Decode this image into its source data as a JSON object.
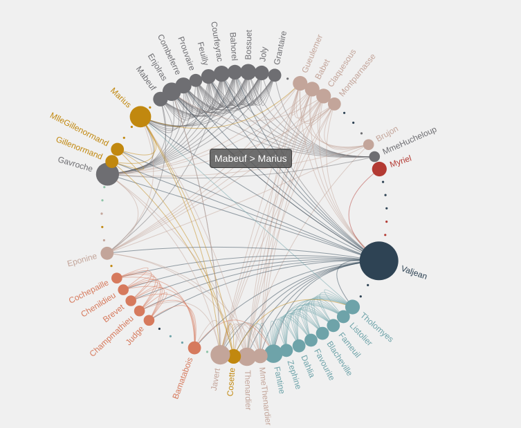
{
  "tooltip": {
    "text": "Mabeuf > Marius"
  },
  "colors": {
    "background": "#f0f0f0",
    "categories": [
      "#c1880f",
      "#6e6e72",
      "#c3a59a",
      "#b33a33",
      "#2e4354",
      "#d67a5d",
      "#6ea3a9",
      "#8fc3a8"
    ]
  },
  "chart_data": {
    "type": "graph",
    "layout": "circular",
    "nodes": [
      {
        "name": "Mabeuf",
        "category": 1,
        "size": 3,
        "label": true
      },
      {
        "name": "Enjolras",
        "category": 1,
        "size": 6,
        "label": true
      },
      {
        "name": "Combeferre",
        "category": 1,
        "size": 4,
        "label": true
      },
      {
        "name": "Prouvaire",
        "category": 1,
        "size": 2,
        "label": true
      },
      {
        "name": "Feuilly",
        "category": 1,
        "size": 3,
        "label": true
      },
      {
        "name": "Courfeyrac",
        "category": 1,
        "size": 4,
        "label": true
      },
      {
        "name": "Bahorel",
        "category": 1,
        "size": 3,
        "label": true
      },
      {
        "name": "Bossuet",
        "category": 1,
        "size": 4,
        "label": true
      },
      {
        "name": "Joly",
        "category": 1,
        "size": 3,
        "label": true
      },
      {
        "name": "Grantaire",
        "category": 1,
        "size": 2,
        "label": true
      },
      {
        "name": "",
        "category": 1,
        "size": 0,
        "label": false
      },
      {
        "name": "Gueulemer",
        "category": 2,
        "size": 3,
        "label": true
      },
      {
        "name": "Babet",
        "category": 2,
        "size": 3,
        "label": true
      },
      {
        "name": "Claquesous",
        "category": 2,
        "size": 3,
        "label": true
      },
      {
        "name": "Montparnasse",
        "category": 2,
        "size": 2,
        "label": true
      },
      {
        "name": "",
        "category": 4,
        "size": 0,
        "label": false
      },
      {
        "name": "",
        "category": 4,
        "size": 0,
        "label": false
      },
      {
        "name": "",
        "category": 1,
        "size": 0,
        "label": false
      },
      {
        "name": "Brujon",
        "category": 2,
        "size": 1,
        "label": true
      },
      {
        "name": "MmeHucheloup",
        "category": 1,
        "size": 1,
        "label": true
      },
      {
        "name": "Myriel",
        "category": 3,
        "size": 3,
        "label": true
      },
      {
        "name": "",
        "category": 4,
        "size": 0,
        "label": false
      },
      {
        "name": "",
        "category": 4,
        "size": 0,
        "label": false
      },
      {
        "name": "",
        "category": 4,
        "size": 0,
        "label": false
      },
      {
        "name": "",
        "category": 3,
        "size": 0,
        "label": false
      },
      {
        "name": "",
        "category": 3,
        "size": 0,
        "label": false
      },
      {
        "name": "",
        "category": 3,
        "size": 0,
        "label": false
      },
      {
        "name": "Valjean",
        "category": 4,
        "size": 40,
        "label": true
      },
      {
        "name": "",
        "category": 4,
        "size": 0,
        "label": false
      },
      {
        "name": "",
        "category": 4,
        "size": 0,
        "label": false
      },
      {
        "name": "",
        "category": 4,
        "size": 0,
        "label": false
      },
      {
        "name": "Tholomyes",
        "category": 6,
        "size": 3,
        "label": true
      },
      {
        "name": "Listolier",
        "category": 6,
        "size": 2,
        "label": true
      },
      {
        "name": "Fameuil",
        "category": 6,
        "size": 2,
        "label": true
      },
      {
        "name": "Blacheville",
        "category": 6,
        "size": 2,
        "label": true
      },
      {
        "name": "Favourite",
        "category": 6,
        "size": 2,
        "label": true
      },
      {
        "name": "Dahlia",
        "category": 6,
        "size": 2,
        "label": true
      },
      {
        "name": "Zephine",
        "category": 6,
        "size": 2,
        "label": true
      },
      {
        "name": "Fantine",
        "category": 6,
        "size": 6,
        "label": true
      },
      {
        "name": "MmeThenardier",
        "category": 2,
        "size": 3,
        "label": true
      },
      {
        "name": "Thenardier",
        "category": 2,
        "size": 6,
        "label": true
      },
      {
        "name": "Cosette",
        "category": 0,
        "size": 3,
        "label": true
      },
      {
        "name": "Javert",
        "category": 2,
        "size": 7,
        "label": true
      },
      {
        "name": "",
        "category": 7,
        "size": 0,
        "label": false
      },
      {
        "name": "Bamatabois",
        "category": 5,
        "size": 2,
        "label": true
      },
      {
        "name": "",
        "category": 6,
        "size": 0,
        "label": false
      },
      {
        "name": "",
        "category": 6,
        "size": 0,
        "label": false
      },
      {
        "name": "",
        "category": 4,
        "size": 0,
        "label": false
      },
      {
        "name": "Judge",
        "category": 5,
        "size": 1,
        "label": true
      },
      {
        "name": "Champmathieu",
        "category": 5,
        "size": 1,
        "label": true
      },
      {
        "name": "Brevet",
        "category": 5,
        "size": 1,
        "label": true
      },
      {
        "name": "Chenildieu",
        "category": 5,
        "size": 1,
        "label": true
      },
      {
        "name": "Cochepaille",
        "category": 5,
        "size": 1,
        "label": true
      },
      {
        "name": "",
        "category": 0,
        "size": 0,
        "label": false
      },
      {
        "name": "Eponine",
        "category": 2,
        "size": 2,
        "label": true
      },
      {
        "name": "",
        "category": 2,
        "size": 0,
        "label": false
      },
      {
        "name": "",
        "category": 0,
        "size": 0,
        "label": false
      },
      {
        "name": "",
        "category": 2,
        "size": 0,
        "label": false
      },
      {
        "name": "",
        "category": 7,
        "size": 0,
        "label": false
      },
      {
        "name": "",
        "category": 7,
        "size": 0,
        "label": false
      },
      {
        "name": "Gavroche",
        "category": 1,
        "size": 11,
        "label": true
      },
      {
        "name": "Gillenormand",
        "category": 0,
        "size": 2,
        "label": true
      },
      {
        "name": "MlleGillenormand",
        "category": 0,
        "size": 2,
        "label": true
      },
      {
        "name": "",
        "category": 0,
        "size": 0,
        "label": false
      },
      {
        "name": "",
        "category": 0,
        "size": 0,
        "label": false
      },
      {
        "name": "Marius",
        "category": 0,
        "size": 9,
        "label": true
      },
      {
        "name": "",
        "category": 0,
        "size": 0,
        "label": false
      }
    ],
    "links": [
      [
        "Mabeuf",
        "Marius"
      ],
      [
        "Mabeuf",
        "Gavroche"
      ],
      [
        "Mabeuf",
        "Eponine"
      ],
      [
        "Mabeuf",
        "Enjolras"
      ],
      [
        "Mabeuf",
        "Combeferre"
      ],
      [
        "Mabeuf",
        "Courfeyrac"
      ],
      [
        "Mabeuf",
        "Feuilly"
      ],
      [
        "Mabeuf",
        "Bossuet"
      ],
      [
        "Mabeuf",
        "Joly"
      ],
      [
        "Mabeuf",
        "Bahorel"
      ],
      [
        "Mabeuf",
        "Prouvaire"
      ],
      [
        "Enjolras",
        "Marius"
      ],
      [
        "Enjolras",
        "Gavroche"
      ],
      [
        "Enjolras",
        "Javert"
      ],
      [
        "Enjolras",
        "Valjean"
      ],
      [
        "Enjolras",
        "Combeferre"
      ],
      [
        "Enjolras",
        "Prouvaire"
      ],
      [
        "Enjolras",
        "Feuilly"
      ],
      [
        "Enjolras",
        "Courfeyrac"
      ],
      [
        "Enjolras",
        "Bahorel"
      ],
      [
        "Enjolras",
        "Bossuet"
      ],
      [
        "Enjolras",
        "Joly"
      ],
      [
        "Enjolras",
        "Grantaire"
      ],
      [
        "Enjolras",
        "MmeHucheloup"
      ],
      [
        "Combeferre",
        "Marius"
      ],
      [
        "Combeferre",
        "Gavroche"
      ],
      [
        "Combeferre",
        "Prouvaire"
      ],
      [
        "Combeferre",
        "Feuilly"
      ],
      [
        "Combeferre",
        "Courfeyrac"
      ],
      [
        "Combeferre",
        "Bahorel"
      ],
      [
        "Combeferre",
        "Bossuet"
      ],
      [
        "Combeferre",
        "Joly"
      ],
      [
        "Combeferre",
        "Grantaire"
      ],
      [
        "Prouvaire",
        "Gavroche"
      ],
      [
        "Prouvaire",
        "Feuilly"
      ],
      [
        "Prouvaire",
        "Courfeyrac"
      ],
      [
        "Prouvaire",
        "Bahorel"
      ],
      [
        "Prouvaire",
        "Bossuet"
      ],
      [
        "Prouvaire",
        "Joly"
      ],
      [
        "Prouvaire",
        "Grantaire"
      ],
      [
        "Feuilly",
        "Marius"
      ],
      [
        "Feuilly",
        "Gavroche"
      ],
      [
        "Feuilly",
        "Courfeyrac"
      ],
      [
        "Feuilly",
        "Bahorel"
      ],
      [
        "Feuilly",
        "Bossuet"
      ],
      [
        "Feuilly",
        "Joly"
      ],
      [
        "Feuilly",
        "Grantaire"
      ],
      [
        "Feuilly",
        "MmeHucheloup"
      ],
      [
        "Courfeyrac",
        "Marius"
      ],
      [
        "Courfeyrac",
        "Gavroche"
      ],
      [
        "Courfeyrac",
        "Eponine"
      ],
      [
        "Courfeyrac",
        "Bahorel"
      ],
      [
        "Courfeyrac",
        "Bossuet"
      ],
      [
        "Courfeyrac",
        "Joly"
      ],
      [
        "Courfeyrac",
        "Grantaire"
      ],
      [
        "Courfeyrac",
        "MmeHucheloup"
      ],
      [
        "Bahorel",
        "Marius"
      ],
      [
        "Bahorel",
        "Gavroche"
      ],
      [
        "Bahorel",
        "Bossuet"
      ],
      [
        "Bahorel",
        "Joly"
      ],
      [
        "Bahorel",
        "Grantaire"
      ],
      [
        "Bahorel",
        "MmeHucheloup"
      ],
      [
        "Bossuet",
        "Marius"
      ],
      [
        "Bossuet",
        "Valjean"
      ],
      [
        "Bossuet",
        "Gavroche"
      ],
      [
        "Bossuet",
        "Joly"
      ],
      [
        "Bossuet",
        "Grantaire"
      ],
      [
        "Bossuet",
        "MmeHucheloup"
      ],
      [
        "Joly",
        "Marius"
      ],
      [
        "Joly",
        "Gavroche"
      ],
      [
        "Joly",
        "Grantaire"
      ],
      [
        "Joly",
        "MmeHucheloup"
      ],
      [
        "Grantaire",
        "Gavroche"
      ],
      [
        "Grantaire",
        "MmeHucheloup"
      ],
      [
        "Gueulemer",
        "Babet"
      ],
      [
        "Gueulemer",
        "Claquesous"
      ],
      [
        "Gueulemer",
        "Montparnasse"
      ],
      [
        "Gueulemer",
        "Brujon"
      ],
      [
        "Gueulemer",
        "Thenardier"
      ],
      [
        "Gueulemer",
        "MmeThenardier"
      ],
      [
        "Gueulemer",
        "Javert"
      ],
      [
        "Gueulemer",
        "Valjean"
      ],
      [
        "Gueulemer",
        "Eponine"
      ],
      [
        "Gueulemer",
        "Gavroche"
      ],
      [
        "Babet",
        "Claquesous"
      ],
      [
        "Babet",
        "Montparnasse"
      ],
      [
        "Babet",
        "Brujon"
      ],
      [
        "Babet",
        "Thenardier"
      ],
      [
        "Babet",
        "MmeThenardier"
      ],
      [
        "Babet",
        "Javert"
      ],
      [
        "Babet",
        "Valjean"
      ],
      [
        "Babet",
        "Eponine"
      ],
      [
        "Babet",
        "Gavroche"
      ],
      [
        "Claquesous",
        "Montparnasse"
      ],
      [
        "Claquesous",
        "Brujon"
      ],
      [
        "Claquesous",
        "Thenardier"
      ],
      [
        "Claquesous",
        "MmeThenardier"
      ],
      [
        "Claquesous",
        "Javert"
      ],
      [
        "Claquesous",
        "Valjean"
      ],
      [
        "Claquesous",
        "Eponine"
      ],
      [
        "Claquesous",
        "Enjolras"
      ],
      [
        "Montparnasse",
        "Brujon"
      ],
      [
        "Montparnasse",
        "Thenardier"
      ],
      [
        "Montparnasse",
        "Javert"
      ],
      [
        "Montparnasse",
        "Valjean"
      ],
      [
        "Montparnasse",
        "Eponine"
      ],
      [
        "Montparnasse",
        "Gavroche"
      ],
      [
        "Brujon",
        "Thenardier"
      ],
      [
        "Brujon",
        "Gavroche"
      ],
      [
        "Brujon",
        "Eponine"
      ],
      [
        "MmeHucheloup",
        "Gavroche"
      ],
      [
        "MmeHucheloup",
        "Combeferre"
      ],
      [
        "MmeHucheloup",
        "Prouvaire"
      ],
      [
        "Myriel",
        "Valjean"
      ],
      [
        "Valjean",
        "Tholomyes"
      ],
      [
        "Valjean",
        "Fantine"
      ],
      [
        "Valjean",
        "Cosette"
      ],
      [
        "Valjean",
        "Javert"
      ],
      [
        "Valjean",
        "Thenardier"
      ],
      [
        "Valjean",
        "MmeThenardier"
      ],
      [
        "Valjean",
        "Marius"
      ],
      [
        "Valjean",
        "Gavroche"
      ],
      [
        "Valjean",
        "Bamatabois"
      ],
      [
        "Valjean",
        "Judge"
      ],
      [
        "Valjean",
        "Champmathieu"
      ],
      [
        "Valjean",
        "Brevet"
      ],
      [
        "Valjean",
        "Chenildieu"
      ],
      [
        "Valjean",
        "Cochepaille"
      ],
      [
        "Valjean",
        "Gillenormand"
      ],
      [
        "Valjean",
        "MlleGillenormand"
      ],
      [
        "Valjean",
        "Eponine"
      ],
      [
        "Valjean",
        "Enjolras"
      ],
      [
        "Valjean",
        "Combeferre"
      ],
      [
        "Valjean",
        "Courfeyrac"
      ],
      [
        "Valjean",
        "Feuilly"
      ],
      [
        "Valjean",
        "Bahorel"
      ],
      [
        "Tholomyes",
        "Listolier"
      ],
      [
        "Tholomyes",
        "Fameuil"
      ],
      [
        "Tholomyes",
        "Blacheville"
      ],
      [
        "Tholomyes",
        "Favourite"
      ],
      [
        "Tholomyes",
        "Dahlia"
      ],
      [
        "Tholomyes",
        "Zephine"
      ],
      [
        "Tholomyes",
        "Fantine"
      ],
      [
        "Tholomyes",
        "Marius"
      ],
      [
        "Listolier",
        "Fameuil"
      ],
      [
        "Listolier",
        "Blacheville"
      ],
      [
        "Listolier",
        "Favourite"
      ],
      [
        "Listolier",
        "Dahlia"
      ],
      [
        "Listolier",
        "Zephine"
      ],
      [
        "Listolier",
        "Fantine"
      ],
      [
        "Fameuil",
        "Blacheville"
      ],
      [
        "Fameuil",
        "Favourite"
      ],
      [
        "Fameuil",
        "Dahlia"
      ],
      [
        "Fameuil",
        "Zephine"
      ],
      [
        "Fameuil",
        "Fantine"
      ],
      [
        "Blacheville",
        "Favourite"
      ],
      [
        "Blacheville",
        "Dahlia"
      ],
      [
        "Blacheville",
        "Zephine"
      ],
      [
        "Blacheville",
        "Fantine"
      ],
      [
        "Favourite",
        "Dahlia"
      ],
      [
        "Favourite",
        "Zephine"
      ],
      [
        "Favourite",
        "Fantine"
      ],
      [
        "Dahlia",
        "Zephine"
      ],
      [
        "Dahlia",
        "Fantine"
      ],
      [
        "Zephine",
        "Fantine"
      ],
      [
        "Fantine",
        "Thenardier"
      ],
      [
        "Fantine",
        "MmeThenardier"
      ],
      [
        "Fantine",
        "Javert"
      ],
      [
        "MmeThenardier",
        "Thenardier"
      ],
      [
        "MmeThenardier",
        "Cosette"
      ],
      [
        "MmeThenardier",
        "Javert"
      ],
      [
        "MmeThenardier",
        "Eponine"
      ],
      [
        "Thenardier",
        "Cosette"
      ],
      [
        "Thenardier",
        "Javert"
      ],
      [
        "Thenardier",
        "Marius"
      ],
      [
        "Thenardier",
        "Eponine"
      ],
      [
        "Thenardier",
        "Gavroche"
      ],
      [
        "Cosette",
        "Javert"
      ],
      [
        "Cosette",
        "Marius"
      ],
      [
        "Cosette",
        "Gillenormand"
      ],
      [
        "Cosette",
        "MlleGillenormand"
      ],
      [
        "Cosette",
        "Tholomyes"
      ],
      [
        "Javert",
        "Fantine"
      ],
      [
        "Javert",
        "Bamatabois"
      ],
      [
        "Javert",
        "Gavroche"
      ],
      [
        "Javert",
        "Enjolras"
      ],
      [
        "Javert",
        "Champmathieu"
      ],
      [
        "Bamatabois",
        "Fantine"
      ],
      [
        "Bamatabois",
        "Judge"
      ],
      [
        "Bamatabois",
        "Champmathieu"
      ],
      [
        "Bamatabois",
        "Brevet"
      ],
      [
        "Bamatabois",
        "Chenildieu"
      ],
      [
        "Bamatabois",
        "Cochepaille"
      ],
      [
        "Judge",
        "Champmathieu"
      ],
      [
        "Judge",
        "Brevet"
      ],
      [
        "Judge",
        "Chenildieu"
      ],
      [
        "Judge",
        "Cochepaille"
      ],
      [
        "Champmathieu",
        "Brevet"
      ],
      [
        "Champmathieu",
        "Chenildieu"
      ],
      [
        "Champmathieu",
        "Cochepaille"
      ],
      [
        "Brevet",
        "Chenildieu"
      ],
      [
        "Brevet",
        "Cochepaille"
      ],
      [
        "Chenildieu",
        "Cochepaille"
      ],
      [
        "Eponine",
        "Marius"
      ],
      [
        "Eponine",
        "Gavroche"
      ],
      [
        "Gavroche",
        "Marius"
      ],
      [
        "Gillenormand",
        "Marius"
      ],
      [
        "Gillenormand",
        "MlleGillenormand"
      ],
      [
        "MlleGillenormand",
        "Marius"
      ],
      [
        "Marius",
        "Gueulemer"
      ],
      [
        "Marius",
        "Javert"
      ]
    ]
  }
}
